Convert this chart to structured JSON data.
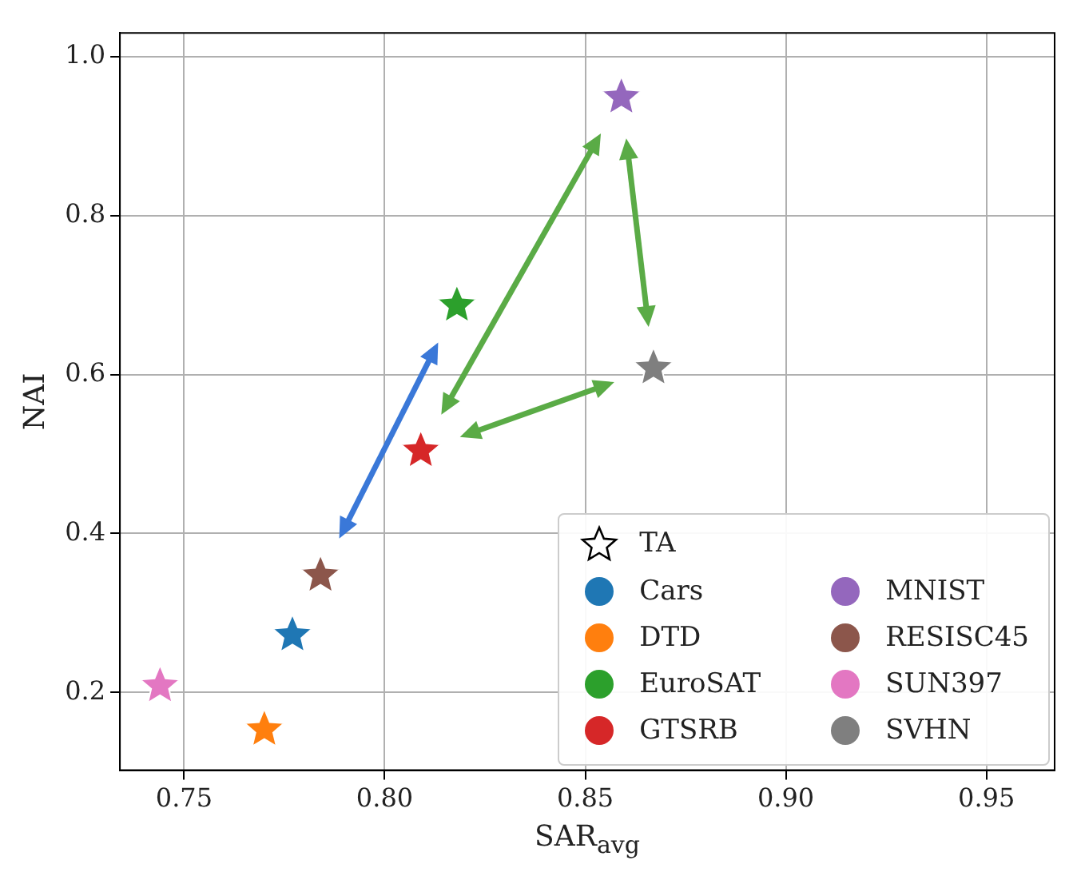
{
  "chart_data": {
    "type": "scatter",
    "xlabel": "SAR$_{avg}$",
    "ylabel": "NAI",
    "legend_title": "TA",
    "marker": "star",
    "grid": true,
    "legend": "bottom right",
    "xlim": [
      0.734,
      0.967
    ],
    "xticks": [
      0.75,
      {
        "value": 0.8,
        "label": "0.80"
      },
      0.85,
      {
        "value": 0.9,
        "label": "0.90"
      },
      0.95
    ],
    "ylim": [
      0.102,
      1.03
    ],
    "yticks": [
      0.2,
      0.4,
      0.6,
      0.8,
      {
        "value": 1.0,
        "label": "1.0"
      }
    ],
    "series": [
      {
        "name": "Cars",
        "color": "#1f77b4",
        "x": [
          0.777
        ],
        "values": [
          0.272
        ]
      },
      {
        "name": "DTD",
        "color": "#ff7f0e",
        "x": [
          0.77
        ],
        "values": [
          0.153
        ]
      },
      {
        "name": "EuroSAT",
        "color": "#2ca02c",
        "x": [
          0.818
        ],
        "values": [
          0.687
        ]
      },
      {
        "name": "GTSRB",
        "color": "#d62728",
        "x": [
          0.809
        ],
        "values": [
          0.504
        ]
      },
      {
        "name": "MNIST",
        "color": "#9467bd",
        "x": [
          0.859
        ],
        "values": [
          0.949
        ]
      },
      {
        "name": "RESISC45",
        "color": "#8c564b",
        "x": [
          0.784
        ],
        "values": [
          0.347
        ]
      },
      {
        "name": "SUN397",
        "color": "#e377c2",
        "x": [
          0.744
        ],
        "values": [
          0.208
        ]
      },
      {
        "name": "SVHN",
        "color": "#7f7f7f",
        "x": [
          0.867
        ],
        "values": [
          0.608
        ]
      }
    ]
  }
}
